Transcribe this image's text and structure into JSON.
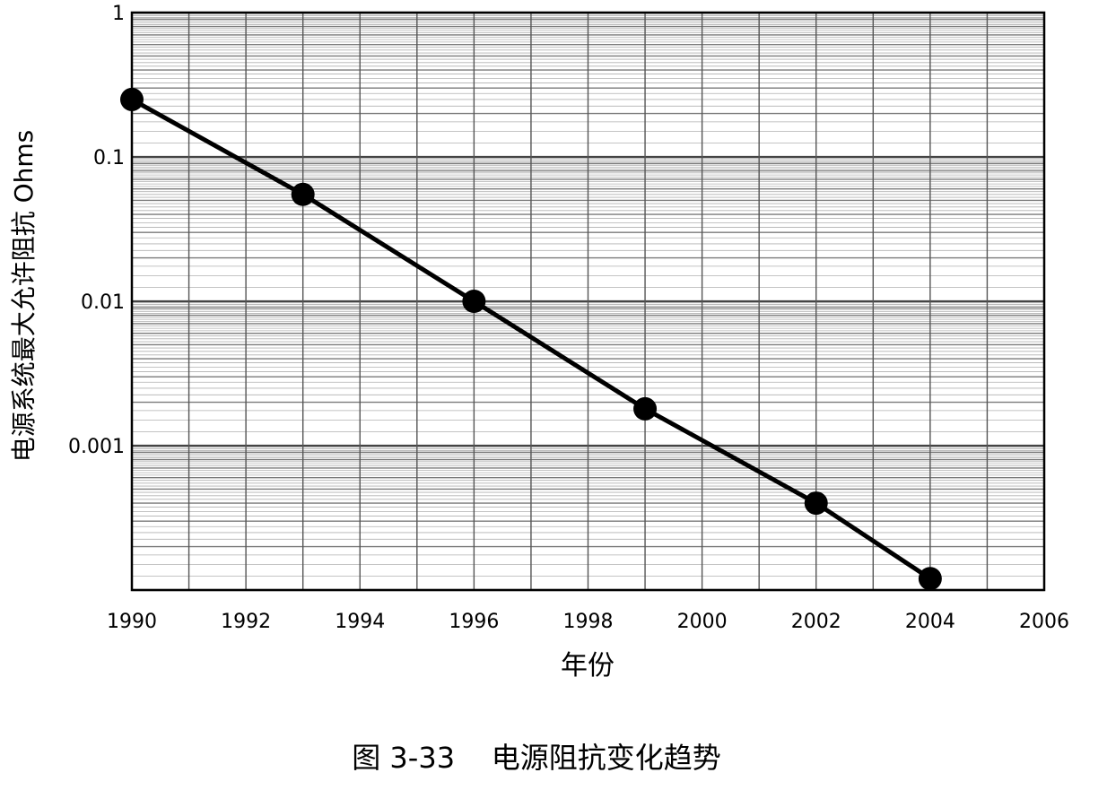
{
  "chart_data": {
    "type": "line",
    "title": "",
    "xlabel": "年份",
    "ylabel": "电源系统最大允许阻抗 Ohms",
    "x_scale": "linear",
    "y_scale": "log",
    "xlim": [
      1990,
      2006
    ],
    "ylim": [
      0.0001,
      1
    ],
    "x_ticks": [
      1990,
      1992,
      1994,
      1996,
      1998,
      2000,
      2002,
      2004,
      2006
    ],
    "x_tick_labels": [
      "1990",
      "1992",
      "1994",
      "1996",
      "1998",
      "2000",
      "2002",
      "2004",
      "2006"
    ],
    "y_ticks": [
      1,
      0.1,
      0.01,
      0.001
    ],
    "y_tick_labels": [
      "1",
      "0.1",
      "0.01",
      "0.001"
    ],
    "grid": true,
    "legend": "none",
    "series": [
      {
        "x": [
          1990,
          1993,
          1996,
          1999,
          2002,
          2004
        ],
        "y": [
          0.25,
          0.055,
          0.01,
          0.0018,
          0.0004,
          0.00012
        ],
        "color": "#000000",
        "marker": "circle"
      }
    ]
  },
  "caption": "图 3-33    电源阻抗变化趋势"
}
